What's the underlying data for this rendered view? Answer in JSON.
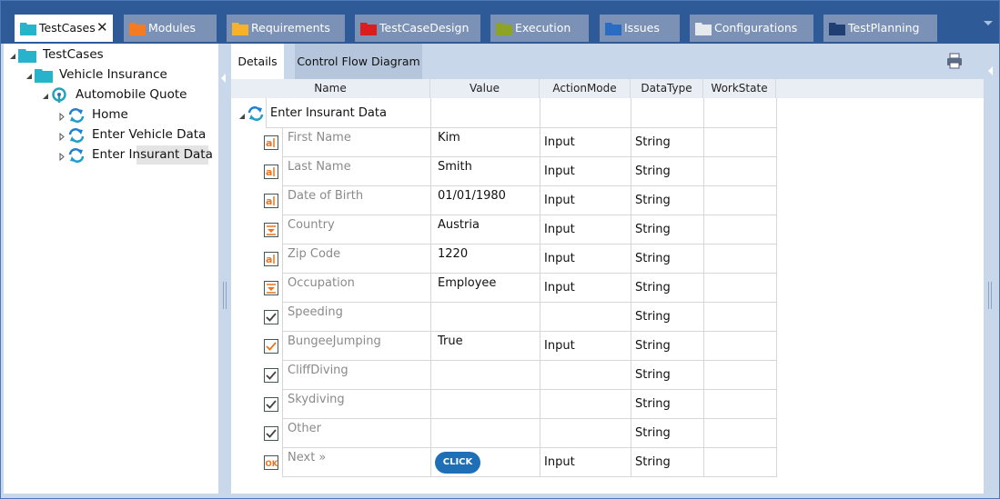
{
  "tabs": [
    {
      "label": "TestCases",
      "color": "#27b3c9",
      "active": true
    },
    {
      "label": "Modules",
      "color": "#f47b20"
    },
    {
      "label": "Requirements",
      "color": "#f8b229"
    },
    {
      "label": "TestCaseDesign",
      "color": "#d81e1e"
    },
    {
      "label": "Execution",
      "color": "#8da321"
    },
    {
      "label": "Issues",
      "color": "#2a6cc4"
    },
    {
      "label": "Configurations",
      "color": "#e6e9ee"
    },
    {
      "label": "TestPlanning",
      "color": "#1f3e73"
    }
  ],
  "tree": [
    {
      "label": "TestCases",
      "depth": 0,
      "icon": "folder",
      "expanded": true
    },
    {
      "label": "Vehicle Insurance",
      "depth": 1,
      "icon": "folder",
      "expanded": true
    },
    {
      "label": "Automobile Quote",
      "depth": 2,
      "icon": "quote",
      "expanded": true
    },
    {
      "label": "Home",
      "depth": 3,
      "icon": "testcase",
      "expanded": false
    },
    {
      "label": "Enter Vehicle Data",
      "depth": 3,
      "icon": "testcase",
      "expanded": false
    },
    {
      "label": "Enter Insurant Data",
      "depth": 3,
      "icon": "testcase",
      "expanded": false,
      "selected": true
    }
  ],
  "detail_tabs": [
    {
      "label": "Details",
      "active": true
    },
    {
      "label": "Control Flow Diagram"
    }
  ],
  "table": {
    "columns": [
      "Name",
      "Value",
      "ActionMode",
      "DataType",
      "WorkState"
    ],
    "group": "Enter Insurant Data",
    "rows": [
      {
        "name": "First Name",
        "value": "Kim",
        "action_mode": "Input",
        "data_type": "String",
        "control": "textbox"
      },
      {
        "name": "Last Name",
        "value": "Smith",
        "action_mode": "Input",
        "data_type": "String",
        "control": "textbox"
      },
      {
        "name": "Date of Birth",
        "value": "01/01/1980",
        "action_mode": "Input",
        "data_type": "String",
        "control": "textbox"
      },
      {
        "name": "Country",
        "value": "Austria",
        "action_mode": "Input",
        "data_type": "String",
        "control": "dropdown"
      },
      {
        "name": "Zip Code",
        "value": "1220",
        "action_mode": "Input",
        "data_type": "String",
        "control": "textbox"
      },
      {
        "name": "Occupation",
        "value": "Employee",
        "action_mode": "Input",
        "data_type": "String",
        "control": "dropdown"
      },
      {
        "name": "Speeding",
        "data_type": "String",
        "control": "checkbox"
      },
      {
        "name": "BungeeJumping",
        "value": "True",
        "action_mode": "Input",
        "data_type": "String",
        "control": "checkbox-checked"
      },
      {
        "name": "CliffDiving",
        "data_type": "String",
        "control": "checkbox"
      },
      {
        "name": "Skydiving",
        "data_type": "String",
        "control": "checkbox"
      },
      {
        "name": "Other",
        "data_type": "String",
        "control": "checkbox"
      },
      {
        "name": "Next »",
        "value": "CLICK",
        "action_mode": "Input",
        "data_type": "String",
        "control": "button"
      }
    ]
  }
}
